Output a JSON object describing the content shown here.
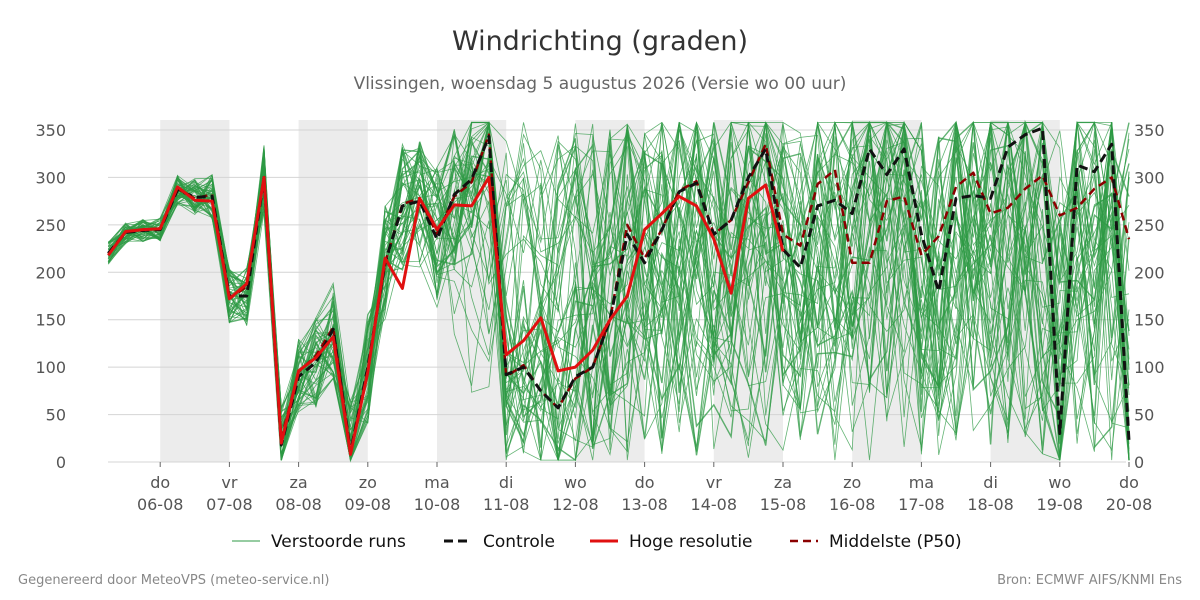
{
  "title": "Windrichting (graden)",
  "subtitle": "Vlissingen, woensdag  5 augustus 2026 (Versie wo 00 uur)",
  "footer_left": "Gegenereerd door MeteoVPS (meteo-service.nl)",
  "footer_right": "Bron: ECMWF AIFS/KNMI Ens",
  "legend": [
    {
      "label": "Verstoorde runs",
      "color": "#2e9a44",
      "style": "thin"
    },
    {
      "label": "Controle",
      "color": "#111111",
      "style": "dashed"
    },
    {
      "label": "Hoge resolutie",
      "color": "#e01010",
      "style": "solid"
    },
    {
      "label": "Middelste (P50)",
      "color": "#8b0000",
      "style": "dashed"
    }
  ],
  "chart_data": {
    "type": "line",
    "title": "Windrichting (graden)",
    "subtitle": "Vlissingen, woensdag  5 augustus 2026 (Versie wo 00 uur)",
    "x_unit": "days (x = day offset, 1 = do 06-08 00:00)",
    "xlim": [
      0.25,
      15.0
    ],
    "ylim": [
      0,
      360
    ],
    "yticks": [
      0,
      50,
      100,
      150,
      200,
      250,
      300,
      350
    ],
    "grid": true,
    "legend_position": "bottom",
    "x_ticks": [
      {
        "x": 1,
        "day": "do",
        "date": "06-08"
      },
      {
        "x": 2,
        "day": "vr",
        "date": "07-08"
      },
      {
        "x": 3,
        "day": "za",
        "date": "08-08"
      },
      {
        "x": 4,
        "day": "zo",
        "date": "09-08"
      },
      {
        "x": 5,
        "day": "ma",
        "date": "10-08"
      },
      {
        "x": 6,
        "day": "di",
        "date": "11-08"
      },
      {
        "x": 7,
        "day": "wo",
        "date": "12-08"
      },
      {
        "x": 8,
        "day": "do",
        "date": "13-08"
      },
      {
        "x": 9,
        "day": "vr",
        "date": "14-08"
      },
      {
        "x": 10,
        "day": "za",
        "date": "15-08"
      },
      {
        "x": 11,
        "day": "zo",
        "date": "16-08"
      },
      {
        "x": 12,
        "day": "ma",
        "date": "17-08"
      },
      {
        "x": 13,
        "day": "di",
        "date": "18-08"
      },
      {
        "x": 14,
        "day": "wo",
        "date": "19-08"
      },
      {
        "x": 15,
        "day": "do",
        "date": "20-08"
      }
    ],
    "shaded_days": [
      [
        1,
        2
      ],
      [
        3,
        4
      ],
      [
        5,
        6
      ],
      [
        7,
        8
      ],
      [
        9,
        10
      ],
      [
        11,
        12
      ],
      [
        13,
        14
      ]
    ],
    "series": [
      {
        "name": "Hoge resolutie",
        "color": "#e01010",
        "x": [
          0.25,
          0.5,
          0.75,
          1.0,
          1.25,
          1.5,
          1.75,
          2.0,
          2.25,
          2.5,
          2.75,
          3.0,
          3.25,
          3.5,
          3.75,
          4.0,
          4.25,
          4.5,
          4.75,
          5.0,
          5.25,
          5.5,
          5.75,
          6.0,
          6.25,
          6.5,
          6.75,
          7.0,
          7.25,
          7.5,
          7.75,
          8.0,
          8.25,
          8.5,
          8.75,
          9.0,
          9.25,
          9.5,
          9.75,
          10.0
        ],
        "y": [
          218,
          243,
          245,
          246,
          290,
          276,
          275,
          172,
          188,
          300,
          20,
          96,
          110,
          132,
          8,
          95,
          215,
          183,
          278,
          245,
          271,
          270,
          300,
          113,
          128,
          152,
          96,
          100,
          118,
          150,
          175,
          245,
          262,
          280,
          270,
          235,
          178,
          278,
          292,
          222
        ]
      },
      {
        "name": "Controle",
        "color": "#111111",
        "x": [
          0.25,
          0.5,
          0.75,
          1.0,
          1.25,
          1.5,
          1.75,
          2.0,
          2.25,
          2.5,
          2.75,
          3.0,
          3.25,
          3.5,
          3.75,
          4.0,
          4.25,
          4.5,
          4.75,
          5.0,
          5.25,
          5.5,
          5.75,
          6.0,
          6.25,
          6.5,
          6.75,
          7.0,
          7.25,
          7.5,
          7.75,
          8.0,
          8.25,
          8.5,
          8.75,
          9.0,
          9.25,
          9.5,
          9.75,
          10.0,
          10.25,
          10.5,
          10.75,
          11.0,
          11.25,
          11.5,
          11.75,
          12.0,
          12.25,
          12.5,
          12.75,
          13.0,
          13.25,
          13.5,
          13.75,
          14.0,
          14.25,
          14.5,
          14.75,
          15.0
        ],
        "y": [
          220,
          242,
          244,
          245,
          287,
          279,
          280,
          175,
          175,
          300,
          18,
          90,
          105,
          140,
          10,
          100,
          210,
          270,
          275,
          235,
          282,
          298,
          343,
          92,
          100,
          75,
          57,
          90,
          100,
          150,
          240,
          210,
          245,
          285,
          294,
          240,
          255,
          300,
          330,
          224,
          205,
          270,
          276,
          262,
          330,
          303,
          330,
          240,
          180,
          278,
          281,
          278,
          332,
          345,
          352,
          30,
          313,
          306,
          335,
          22
        ]
      },
      {
        "name": "Middelste (P50)",
        "color": "#8b0000",
        "x": [
          0.25,
          0.5,
          0.75,
          1.0,
          1.25,
          1.5,
          1.75,
          2.0,
          2.25,
          2.5,
          2.75,
          3.0,
          3.25,
          3.5,
          3.75,
          4.0,
          4.25,
          4.5,
          4.75,
          5.0,
          5.25,
          5.5,
          5.75,
          6.0,
          6.25,
          6.5,
          6.75,
          7.0,
          7.25,
          7.5,
          7.75,
          8.0,
          8.25,
          8.5,
          8.75,
          9.0,
          9.25,
          9.5,
          9.75,
          10.0,
          10.25,
          10.5,
          10.75,
          11.0,
          11.25,
          11.5,
          11.75,
          12.0,
          12.25,
          12.5,
          12.75,
          13.0,
          13.25,
          13.5,
          13.75,
          14.0,
          14.25,
          14.5,
          14.75,
          15.0
        ],
        "y": [
          220,
          242,
          245,
          246,
          288,
          278,
          282,
          172,
          185,
          298,
          25,
          95,
          112,
          142,
          12,
          97,
          210,
          272,
          278,
          240,
          280,
          295,
          345,
          90,
          102,
          75,
          57,
          88,
          100,
          150,
          250,
          215,
          245,
          286,
          296,
          240,
          255,
          295,
          335,
          240,
          228,
          293,
          308,
          210,
          210,
          275,
          280,
          218,
          238,
          290,
          305,
          262,
          268,
          288,
          302,
          260,
          268,
          288,
          300,
          235
        ]
      }
    ],
    "ensemble": {
      "name": "Verstoorde runs",
      "color": "#2e9a44",
      "members": 50,
      "note": "50 perturbed runs following the control path with growing spread; upper envelope ~360, lower ~0 after day 5"
    }
  }
}
